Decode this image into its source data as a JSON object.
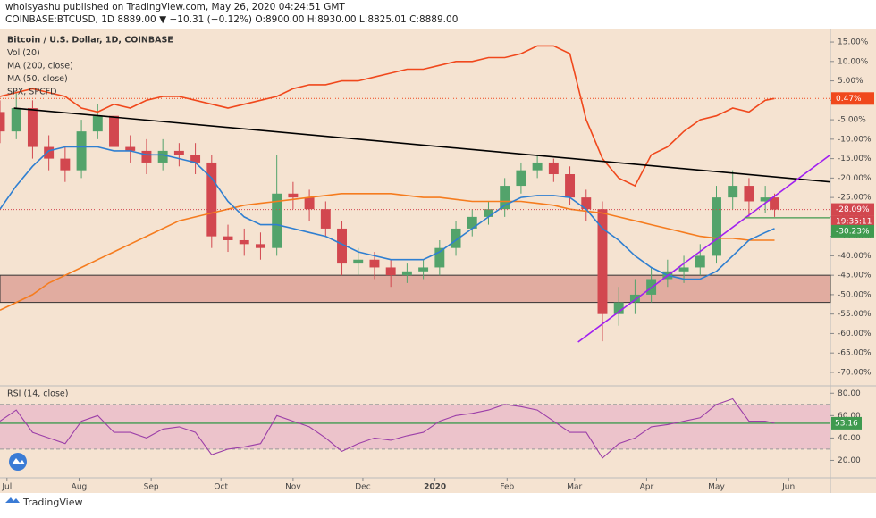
{
  "header": {
    "line1": "whoisyashu published on TradingView.com, May 26, 2020 04:24:51 GMT",
    "line2": "COINBASE:BTCUSD, 1D  8889.00 ▼ −10.31 (−0.12%)  O:8900.00  H:8930.00  L:8825.01  C:8889.00"
  },
  "footer": "TradingView",
  "chart_data": {
    "type": "candlestick",
    "legend": [
      "Bitcoin / U.S. Dollar, 1D, COINBASE",
      "Vol (20)",
      "MA (200, close)",
      "MA (50, close)",
      "SPX, SPCFD"
    ],
    "xlim": [
      0,
      357
    ],
    "xticks": [
      {
        "value": 3,
        "label": "Jul"
      },
      {
        "value": 34,
        "label": "Aug"
      },
      {
        "value": 65,
        "label": "Sep"
      },
      {
        "value": 95,
        "label": "Oct"
      },
      {
        "value": 126,
        "label": "Nov"
      },
      {
        "value": 156,
        "label": "Dec"
      },
      {
        "value": 187,
        "label": "2020"
      },
      {
        "value": 218,
        "label": "Feb"
      },
      {
        "value": 247,
        "label": "Mar"
      },
      {
        "value": 278,
        "label": "Apr"
      },
      {
        "value": 308,
        "label": "May"
      },
      {
        "value": 339,
        "label": "Jun"
      }
    ],
    "ylim": [
      -73,
      18
    ],
    "yticks": [
      {
        "value": 15,
        "label": "15.00%"
      },
      {
        "value": 10,
        "label": "10.00%"
      },
      {
        "value": 5,
        "label": "5.00%"
      },
      {
        "value": 0,
        "label": "0.00%"
      },
      {
        "value": -5,
        "label": "-5.00%"
      },
      {
        "value": -10,
        "label": "-10.00%"
      },
      {
        "value": -15,
        "label": "-15.00%"
      },
      {
        "value": -20,
        "label": "-20.00%"
      },
      {
        "value": -25,
        "label": "-25.00%"
      },
      {
        "value": -30,
        "label": "-30.00%"
      },
      {
        "value": -35,
        "label": "-35.00%"
      },
      {
        "value": -40,
        "label": "-40.00%"
      },
      {
        "value": -45,
        "label": "-45.00%"
      },
      {
        "value": -50,
        "label": "-50.00%"
      },
      {
        "value": -55,
        "label": "-55.00%"
      },
      {
        "value": -60,
        "label": "-60.00%"
      },
      {
        "value": -65,
        "label": "-65.00%"
      },
      {
        "value": -70,
        "label": "-70.00%"
      }
    ],
    "x": [
      0,
      7,
      14,
      21,
      28,
      35,
      42,
      49,
      56,
      63,
      70,
      77,
      84,
      91,
      98,
      105,
      112,
      119,
      126,
      133,
      140,
      147,
      154,
      161,
      168,
      175,
      182,
      189,
      196,
      203,
      210,
      217,
      224,
      231,
      238,
      245,
      252,
      259,
      266,
      273,
      280,
      287,
      294,
      301,
      308,
      315,
      322,
      329,
      333
    ],
    "up_color": "#53a36b",
    "down_color": "#d2474f",
    "open": [
      -3,
      -8,
      -2,
      -12,
      -15,
      -18,
      -8,
      -4,
      -12,
      -13,
      -16,
      -13,
      -14,
      -16,
      -35,
      -36,
      -37,
      -38,
      -24,
      -25,
      -28,
      -33,
      -42,
      -41,
      -43,
      -45,
      -44,
      -43,
      -38,
      -33,
      -30,
      -28,
      -22,
      -18,
      -16,
      -19,
      -25,
      -28,
      -55,
      -52,
      -50,
      -46,
      -44,
      -43,
      -40,
      -25,
      -22,
      -26,
      -25
    ],
    "high": [
      0,
      2,
      0,
      -9,
      -12,
      -5,
      -1,
      -2,
      -9,
      -10,
      -10,
      -11,
      -11,
      -14,
      -32,
      -33,
      -34,
      -14,
      -21,
      -23,
      -26,
      -31,
      -38,
      -39,
      -41,
      -42,
      -41,
      -36,
      -31,
      -28,
      -26,
      -20,
      -16,
      -14,
      -15,
      -17,
      -23,
      -26,
      -48,
      -46,
      -43,
      -41,
      -40,
      -37,
      -22,
      -18,
      -20,
      -22,
      -24
    ],
    "low": [
      -11,
      -10,
      -15,
      -18,
      -21,
      -20,
      -10,
      -15,
      -16,
      -19,
      -18,
      -17,
      -19,
      -38,
      -39,
      -40,
      -41,
      -40,
      -28,
      -31,
      -35,
      -45,
      -45,
      -46,
      -48,
      -47,
      -46,
      -45,
      -40,
      -35,
      -32,
      -30,
      -24,
      -20,
      -21,
      -27,
      -31,
      -62,
      -58,
      -55,
      -52,
      -48,
      -47,
      -45,
      -42,
      -28,
      -30,
      -29,
      -30
    ],
    "close": [
      -8,
      -2,
      -12,
      -15,
      -18,
      -8,
      -4,
      -12,
      -13,
      -16,
      -13,
      -14,
      -16,
      -35,
      -36,
      -37,
      -38,
      -24,
      -25,
      -28,
      -33,
      -42,
      -41,
      -43,
      -45,
      -44,
      -43,
      -38,
      -33,
      -30,
      -28,
      -22,
      -18,
      -16,
      -19,
      -25,
      -28,
      -55,
      -52,
      -50,
      -46,
      -44,
      -43,
      -40,
      -25,
      -22,
      -26,
      -25,
      -28.09
    ],
    "series": [
      {
        "name": "MA (200, close)",
        "color": "#f57c1f",
        "values": [
          -54,
          -52,
          -50,
          -47,
          -45,
          -43,
          -41,
          -39,
          -37,
          -35,
          -33,
          -31,
          -30,
          -29,
          -28,
          -27,
          -26.5,
          -26,
          -25.5,
          -25,
          -24.5,
          -24,
          -24,
          -24,
          -24,
          -24.5,
          -25,
          -25,
          -25.5,
          -26,
          -26,
          -26,
          -26,
          -26.5,
          -27,
          -28,
          -28.5,
          -29,
          -30,
          -31,
          -32,
          -33,
          -34,
          -35,
          -35.5,
          -35.5,
          -36,
          -36,
          -36
        ]
      },
      {
        "name": "MA (50, close)",
        "color": "#2f7fd1",
        "values": [
          -28,
          -22,
          -17,
          -13,
          -12,
          -12,
          -12,
          -13,
          -13,
          -14,
          -14,
          -15,
          -16,
          -20,
          -26,
          -30,
          -32,
          -32,
          -33,
          -34,
          -35,
          -37,
          -39,
          -40,
          -41,
          -41,
          -41,
          -39,
          -36,
          -33,
          -30,
          -27,
          -25,
          -24.5,
          -24.5,
          -25,
          -28,
          -33,
          -36,
          -40,
          -43,
          -45,
          -46,
          -46,
          -44,
          -40,
          -36,
          -34,
          -33
        ]
      },
      {
        "name": "SPX, SPCFD",
        "color": "#f0481c",
        "values": [
          1,
          2,
          3,
          2,
          1,
          -2,
          -3,
          -1,
          -2,
          0,
          1,
          1,
          0,
          -1,
          -2,
          -1,
          0,
          1,
          3,
          4,
          4,
          5,
          5,
          6,
          7,
          8,
          8,
          9,
          10,
          10,
          11,
          11,
          12,
          14,
          14,
          12,
          -5,
          -15,
          -20,
          -22,
          -14,
          -12,
          -8,
          -5,
          -4,
          -2,
          -3,
          0,
          0.47
        ]
      }
    ],
    "last_price": {
      "value": -28.09,
      "label": "-28.09%",
      "countdown": "19:35:11",
      "color": "#d2474f"
    },
    "spx_last": {
      "value": 0.47,
      "label": "0.47%",
      "color": "#f0481c"
    },
    "level": {
      "value": -30.23,
      "label": "-30.23%",
      "color": "#3f9a4f"
    },
    "zone": {
      "top": -45,
      "bottom": -52,
      "color": "#d9998f"
    },
    "trendlines": [
      {
        "color": "#000000",
        "points": [
          [
            6,
            -2
          ],
          [
            357,
            -21
          ]
        ]
      },
      {
        "color": "#a020f0",
        "points": [
          [
            248.5,
            -62.2
          ],
          [
            357,
            -14
          ]
        ]
      }
    ],
    "rsi": {
      "title": "RSI (14, close)",
      "color": "#9c3fa8",
      "ylim": [
        6,
        85
      ],
      "yticks": [
        {
          "value": 80,
          "label": "80.00"
        },
        {
          "value": 60,
          "label": "60.00"
        },
        {
          "value": 40,
          "label": "40.00"
        },
        {
          "value": 20,
          "label": "20.00"
        }
      ],
      "band": [
        30,
        70
      ],
      "values": [
        55,
        65,
        45,
        40,
        35,
        55,
        60,
        45,
        45,
        40,
        48,
        50,
        45,
        25,
        30,
        32,
        35,
        60,
        55,
        50,
        40,
        28,
        35,
        40,
        38,
        42,
        45,
        55,
        60,
        62,
        65,
        70,
        68,
        65,
        55,
        45,
        45,
        22,
        35,
        40,
        50,
        52,
        55,
        58,
        70,
        75,
        55,
        55,
        53.16
      ],
      "last_label": "53.16",
      "line_color": "#3f9a4f"
    }
  }
}
